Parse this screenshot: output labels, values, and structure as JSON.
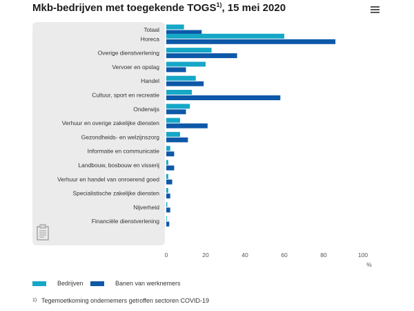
{
  "header": {
    "title": "Mkb-bedrijven met toegekende TOGS",
    "title_sup": "1)",
    "title_suffix": ", 15 mei 2020",
    "menu_icon": "hamburger-menu-icon"
  },
  "chart_data": {
    "type": "bar",
    "orientation": "horizontal",
    "categories": [
      "Totaal",
      "Horeca",
      "Overige dienstverlening",
      "Vervoer en opslag",
      "Handel",
      "Cultuur, sport en recreatie",
      "Onderwijs",
      "Verhuur en overige zakelijke diensten",
      "Gezondheids- en welzijnszorg",
      "Informatie en communicatie",
      "Landbouw, bosbouw en visserij",
      "Verhuur en handel van onroerend goed",
      "Specialistische zakelijke diensten",
      "Nijverheid",
      "Financiële dienstverlening"
    ],
    "series": [
      {
        "name": "Bedrijven",
        "color": "#16a7c7",
        "values": [
          9,
          60,
          23,
          20,
          15,
          13,
          12,
          7,
          7,
          2,
          1,
          1,
          1,
          0.5,
          0.3
        ]
      },
      {
        "name": "Banen van werknemers",
        "color": "#0e58a8",
        "values": [
          18,
          86,
          36,
          10,
          19,
          58,
          10,
          21,
          11,
          4,
          4,
          3,
          2,
          2,
          1.5
        ]
      }
    ],
    "xlim": [
      0,
      100
    ],
    "xticks": [
      "0",
      "20",
      "40",
      "60",
      "80",
      "100"
    ],
    "xlabel": "%",
    "grid": false,
    "legend_placement": "bottom-left"
  },
  "legend": {
    "items": [
      {
        "label": "Bedrijven",
        "color": "#16a7c7"
      },
      {
        "label": "Banen van werknemers",
        "color": "#0e58a8"
      }
    ]
  },
  "footnote": {
    "mark": "1)",
    "text": "Tegemoetkoming ondernemers getroffen sectoren COVID-19"
  },
  "colors": {
    "label_panel_background": "#ebebeb",
    "axis_text": "#555555"
  }
}
